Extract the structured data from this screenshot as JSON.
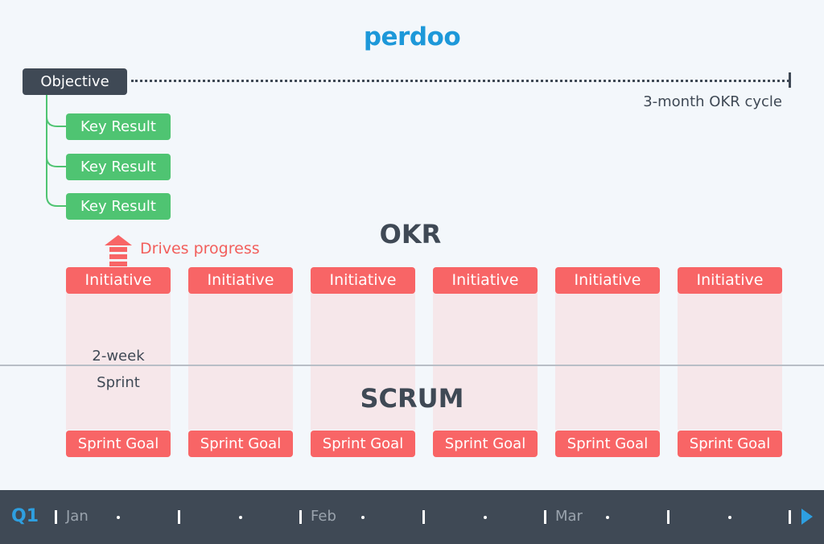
{
  "logo": "perdoo",
  "objective": "Objective",
  "cycle_label": "3-month OKR cycle",
  "key_results": [
    "Key Result",
    "Key Result",
    "Key Result"
  ],
  "okr_title": "OKR",
  "drives_progress": "Drives progress",
  "initiatives": [
    "Initiative",
    "Initiative",
    "Initiative",
    "Initiative",
    "Initiative",
    "Initiative"
  ],
  "sprint_goals": [
    "Sprint Goal",
    "Sprint Goal",
    "Sprint Goal",
    "Sprint Goal",
    "Sprint Goal",
    "Sprint Goal"
  ],
  "sprint_label": [
    "2-week",
    "Sprint"
  ],
  "scrum_title": "SCRUM",
  "timeline": {
    "quarter": "Q1",
    "months": [
      "Jan",
      "Feb",
      "Mar"
    ]
  },
  "colors": {
    "brand": "#1d98d9",
    "objective": "#3f4955",
    "key_result": "#4fc472",
    "initiative": "#f86566",
    "sprint_column": "#f6e7ea",
    "footer": "#3f4955",
    "play": "#2e9fe0"
  }
}
